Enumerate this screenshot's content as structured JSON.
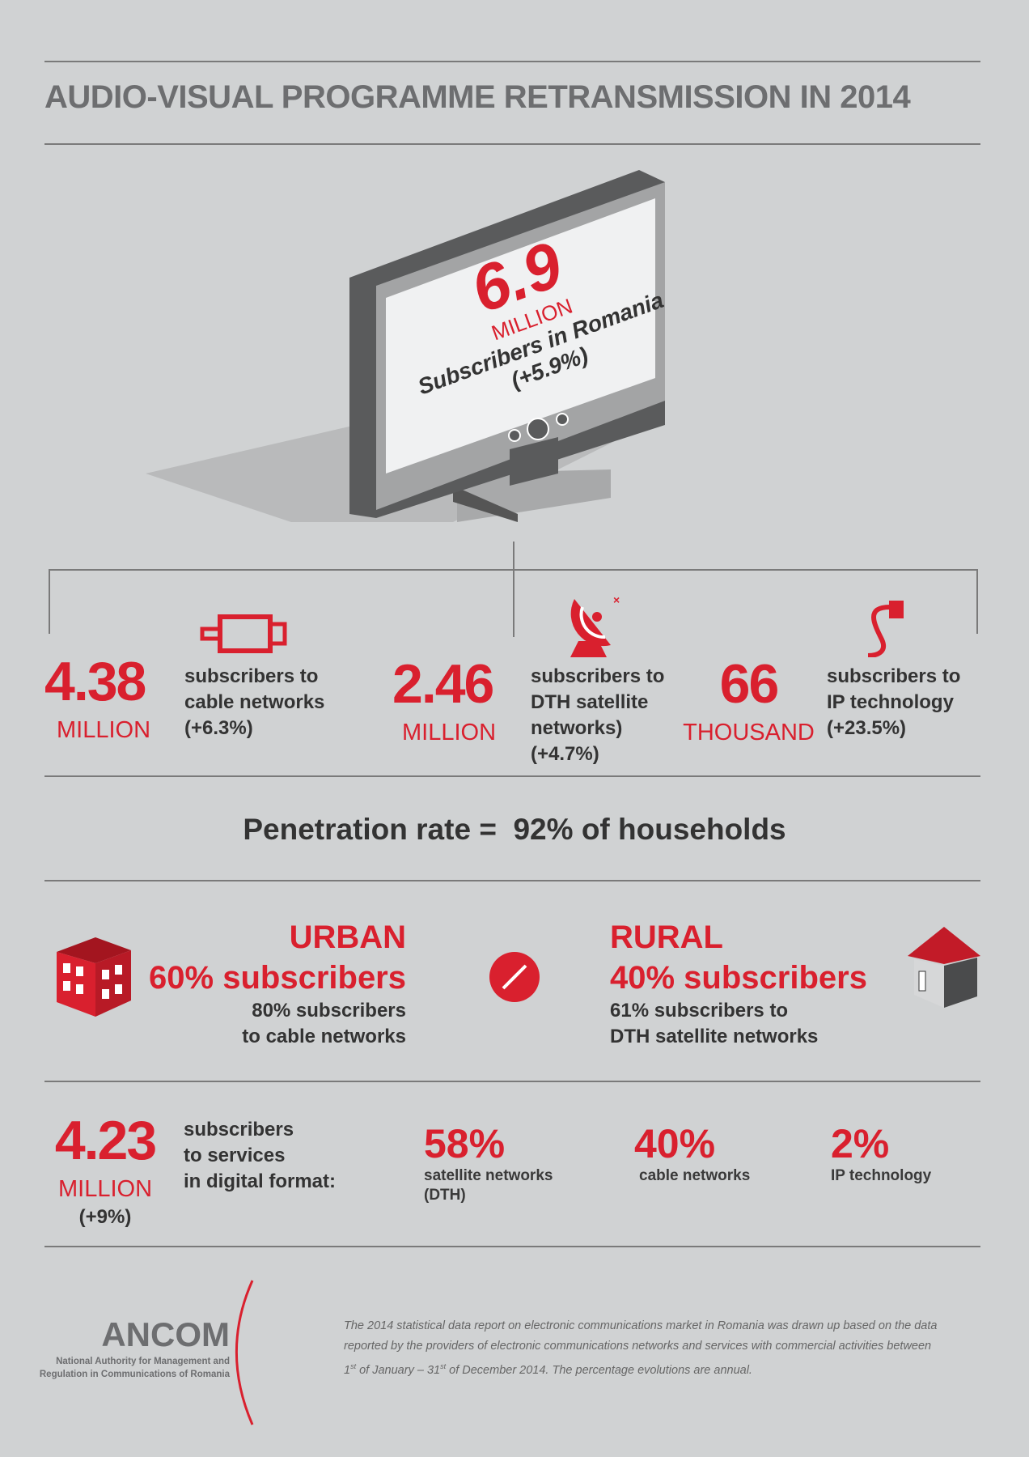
{
  "title": "AUDIO-VISUAL PROGRAMME RETRANSMISSION IN 2014",
  "tv": {
    "value": "6.9",
    "unit": "MILLION",
    "label": "Subscribers in Romania",
    "change": "(+5.9%)"
  },
  "stats": [
    {
      "value": "4.38",
      "unit": "MILLION",
      "l1": "subscribers to",
      "l2": "cable networks",
      "l3": "(+6.3%)",
      "l4": "",
      "icon": "cable-connector-icon"
    },
    {
      "value": "2.46",
      "unit": "MILLION",
      "l1": "subscribers to",
      "l2": "DTH satellite",
      "l3": "networks)",
      "l4": "(+4.7%)",
      "icon": "satellite-dish-icon"
    },
    {
      "value": "66",
      "unit": "THOUSAND",
      "l1": "subscribers to",
      "l2": "IP technology",
      "l3": "(+23.5%)",
      "l4": "",
      "icon": "network-cable-icon"
    }
  ],
  "penetration": "Penetration rate =  92% of households",
  "urban": {
    "title": "URBAN",
    "share": "60% subscribers",
    "l1": "80% subscribers",
    "l2": "to cable networks"
  },
  "rural": {
    "title": "RURAL",
    "share": "40% subscribers",
    "l1": "61% subscribers to",
    "l2": "DTH satellite networks"
  },
  "digital": {
    "value": "4.23",
    "unit": "MILLION",
    "change": "(+9%)",
    "l1": "subscribers",
    "l2": "to services",
    "l3": "in digital format:",
    "items": [
      {
        "pct": "58%",
        "label": "satellite networks",
        "label2": "(DTH)"
      },
      {
        "pct": "40%",
        "label": "cable networks",
        "label2": ""
      },
      {
        "pct": "2%",
        "label": "IP technology",
        "label2": ""
      }
    ]
  },
  "footer": {
    "logo": "ANCOM",
    "org1": "National Authority for Management and",
    "org2": "Regulation in Communications of Romania",
    "note1": "The 2014 statistical data report on electronic communications market in Romania was drawn up based on the data",
    "note2": "reported by the providers of electronic communications networks and services with commercial activities between",
    "note3a": "1",
    "note3b": "st",
    "note3c": " of January – 31",
    "note3d": "st",
    "note3e": " of December 2014. The percentage evolutions are annual."
  },
  "colors": {
    "accent": "#d9202e",
    "background": "#d0d2d3",
    "text": "#333333"
  }
}
